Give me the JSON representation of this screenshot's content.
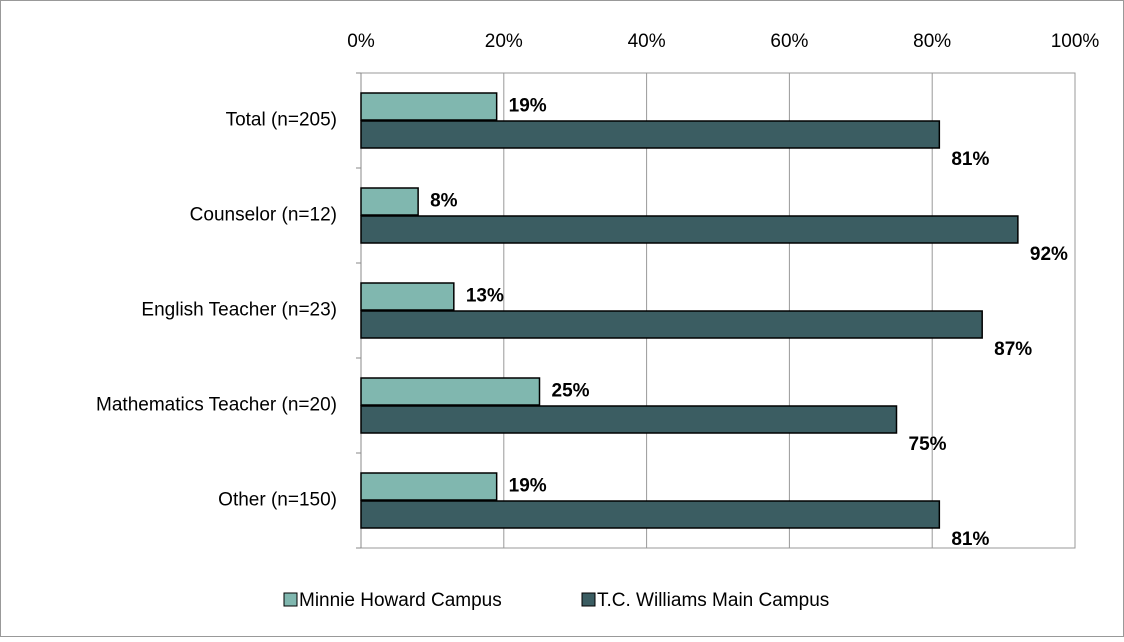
{
  "chart_data": {
    "type": "bar",
    "orientation": "horizontal",
    "categories": [
      "Total (n=205)",
      "Counselor (n=12)",
      "English Teacher (n=23)",
      "Mathematics Teacher (n=20)",
      "Other (n=150)"
    ],
    "series": [
      {
        "name": "Minnie Howard Campus",
        "color": "#80b7af",
        "values": [
          19,
          8,
          13,
          25,
          19
        ],
        "value_labels": [
          "19%",
          "8%",
          "13%",
          "25%",
          "19%"
        ]
      },
      {
        "name": "T.C. Williams Main Campus",
        "color": "#3b5d62",
        "values": [
          81,
          92,
          87,
          75,
          81
        ],
        "value_labels": [
          "81%",
          "92%",
          "87%",
          "75%",
          "81%"
        ]
      }
    ],
    "xlim": [
      0,
      100
    ],
    "xticks": [
      {
        "value": 0,
        "label": "0%"
      },
      {
        "value": 20,
        "label": "20%"
      },
      {
        "value": 40,
        "label": "40%"
      },
      {
        "value": 60,
        "label": "60%"
      },
      {
        "value": 80,
        "label": "80%"
      },
      {
        "value": 100,
        "label": "100%"
      }
    ],
    "grid": true,
    "legend": "bottom"
  }
}
